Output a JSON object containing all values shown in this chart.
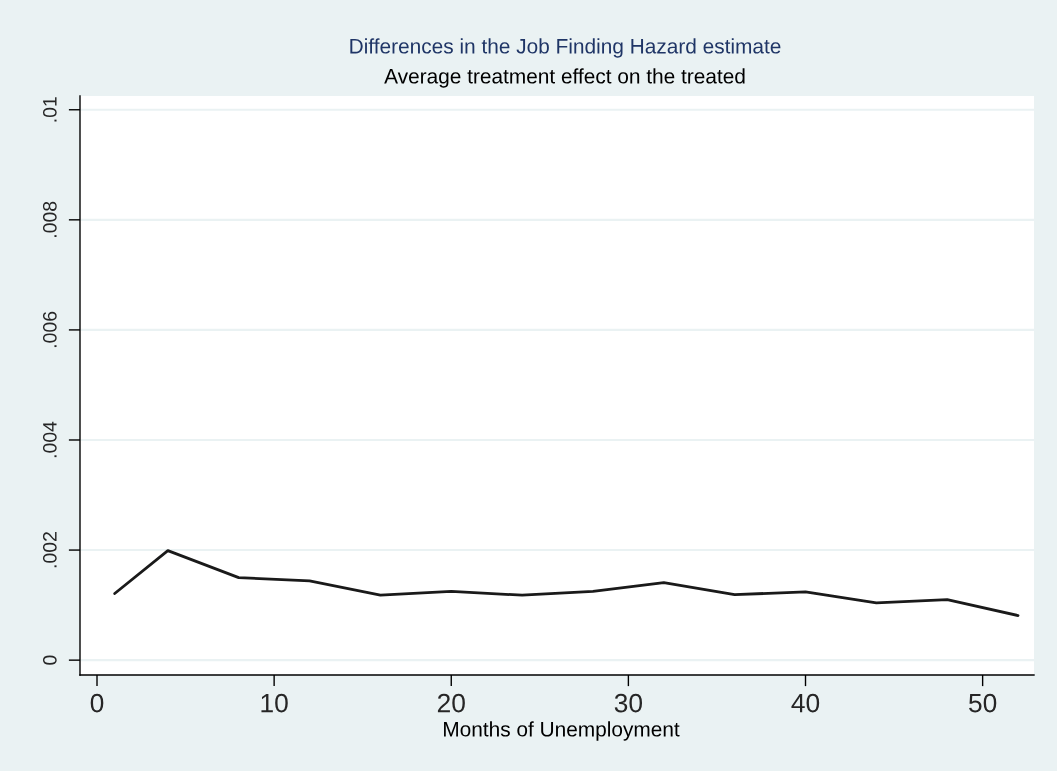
{
  "chart_data": {
    "type": "line",
    "title": "Differences in the Job Finding Hazard estimate",
    "subtitle": "Average treatment effect on the treated",
    "xlabel": "Months of Unemployment",
    "x": [
      1,
      4,
      8,
      12,
      16,
      20,
      24,
      28,
      32,
      36,
      40,
      44,
      48,
      52
    ],
    "series": [
      {
        "color": "#1a1a1a",
        "values": [
          0.00121,
          0.00199,
          0.0015,
          0.00144,
          0.00118,
          0.00125,
          0.00118,
          0.00125,
          0.00141,
          0.00119,
          0.00124,
          0.00104,
          0.0011,
          0.00081
        ]
      }
    ],
    "xlim": [
      -0.96,
      52.9
    ],
    "ylim": [
      -0.00027,
      0.01025
    ],
    "xticks": [
      0,
      10,
      20,
      30,
      40,
      50
    ],
    "yticks": [
      0,
      {
        "value": 0.002,
        "label": ".002"
      },
      {
        "value": 0.004,
        "label": ".004"
      },
      {
        "value": 0.006,
        "label": ".006"
      },
      {
        "value": 0.008,
        "label": ".008"
      },
      {
        "value": 0.01,
        "label": ".01"
      }
    ],
    "grid": "y",
    "marker": "none",
    "line_style": "solid"
  }
}
